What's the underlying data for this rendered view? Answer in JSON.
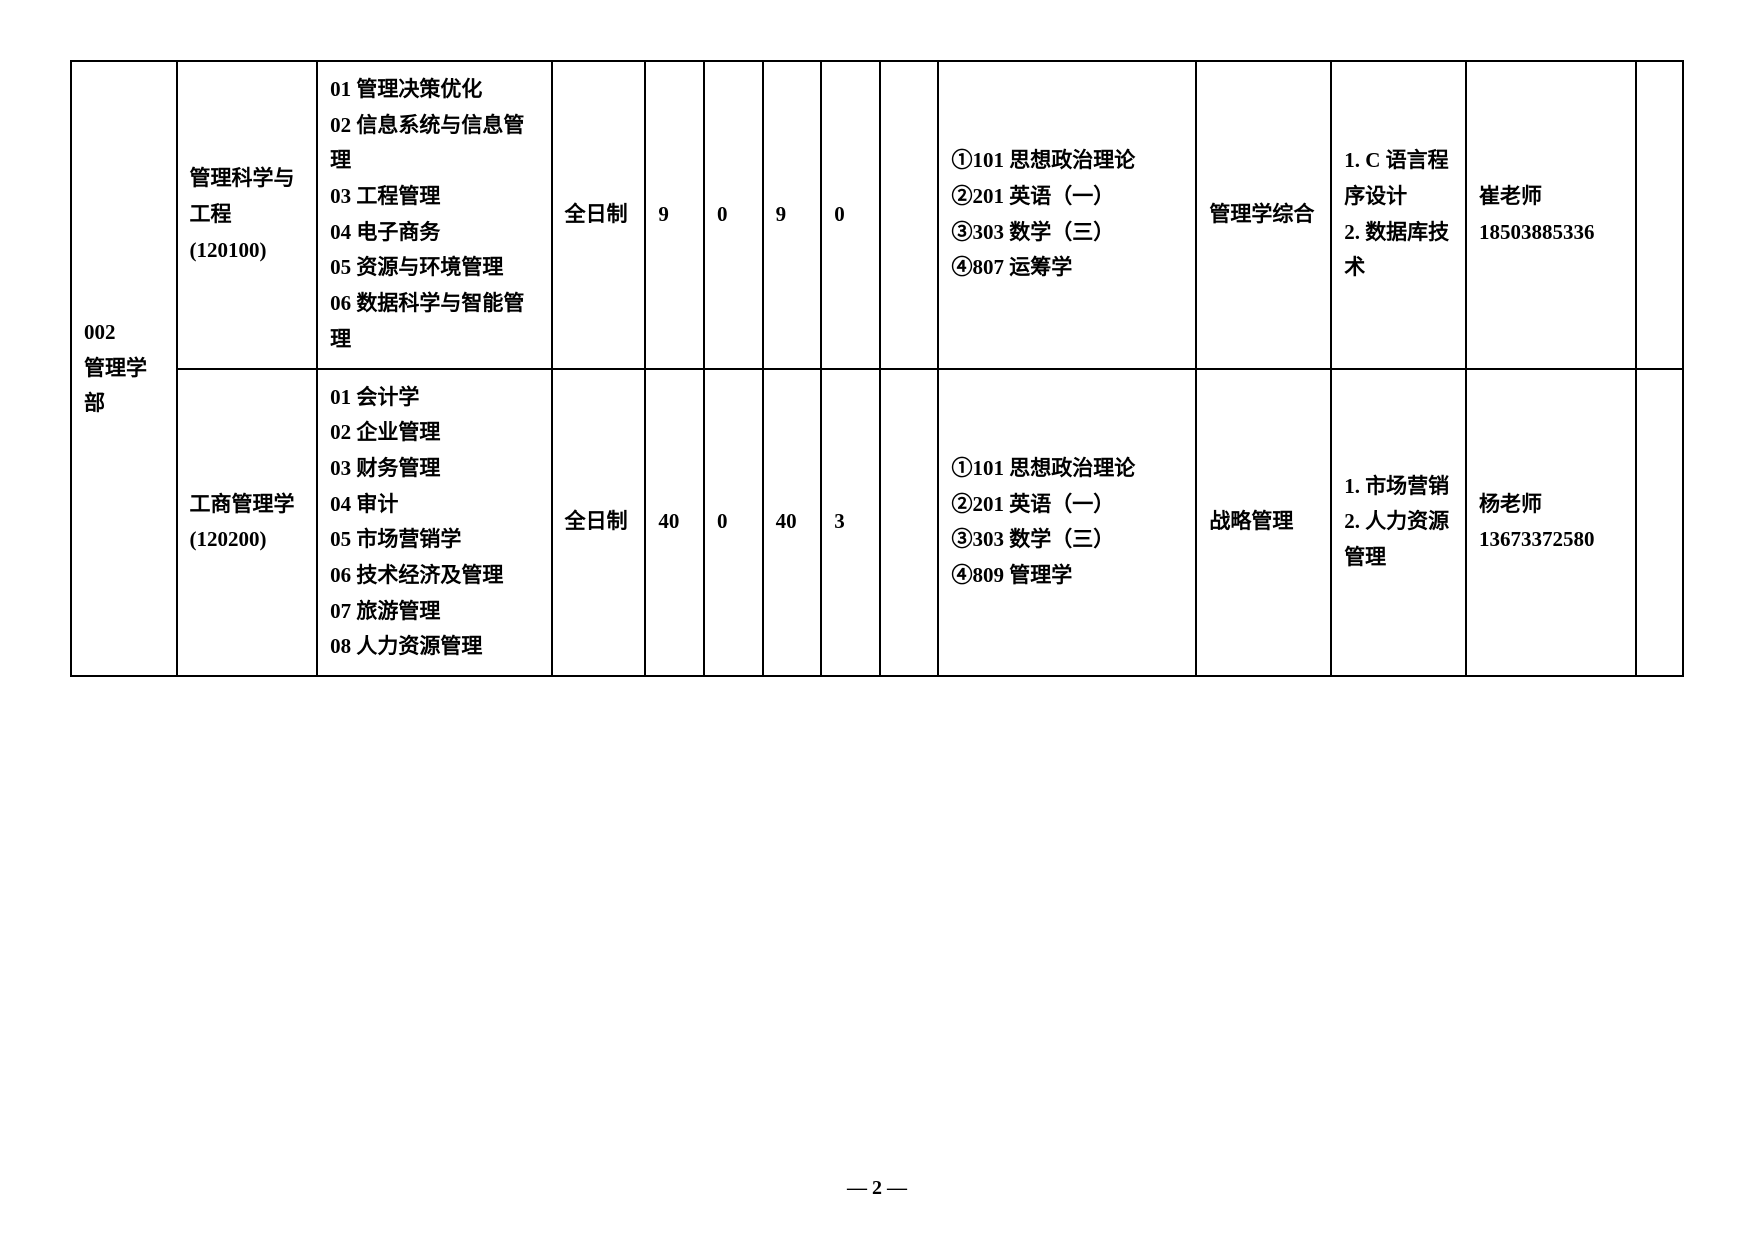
{
  "dept": {
    "code": "002",
    "name": "管理学部"
  },
  "rows": [
    {
      "major": "管理科学与工程\n(120100)",
      "directions": "01 管理决策优化\n02 信息系统与信息管理\n03 工程管理\n04 电子商务\n05 资源与环境管理\n06 数据科学与智能管理",
      "mode": "全日制",
      "n1": "9",
      "n2": "0",
      "n3": "9",
      "n4": "0",
      "exams": "①101 思想政治理论\n②201 英语（一）\n③303 数学（三）\n④807 运筹学",
      "retest": "管理学综合",
      "equiv": "1. C 语言程序设计\n2. 数据库技术",
      "contact": "崔老师\n18503885336"
    },
    {
      "major": "工商管理学\n(120200)",
      "directions": "01 会计学\n02 企业管理\n03 财务管理\n04 审计\n05 市场营销学\n06 技术经济及管理\n07 旅游管理\n08 人力资源管理",
      "mode": "全日制",
      "n1": "40",
      "n2": "0",
      "n3": "40",
      "n4": "3",
      "exams": "①101 思想政治理论\n②201 英语（一）\n③303 数学（三）\n④809 管理学",
      "retest": "战略管理",
      "equiv": "1. 市场营销\n2. 人力资源管理",
      "contact": "杨老师\n13673372580"
    }
  ],
  "pageNum": "— 2 —",
  "style": {
    "borderColor": "#000000",
    "background": "#ffffff",
    "fontSize": 21,
    "fontWeight": "bold"
  }
}
